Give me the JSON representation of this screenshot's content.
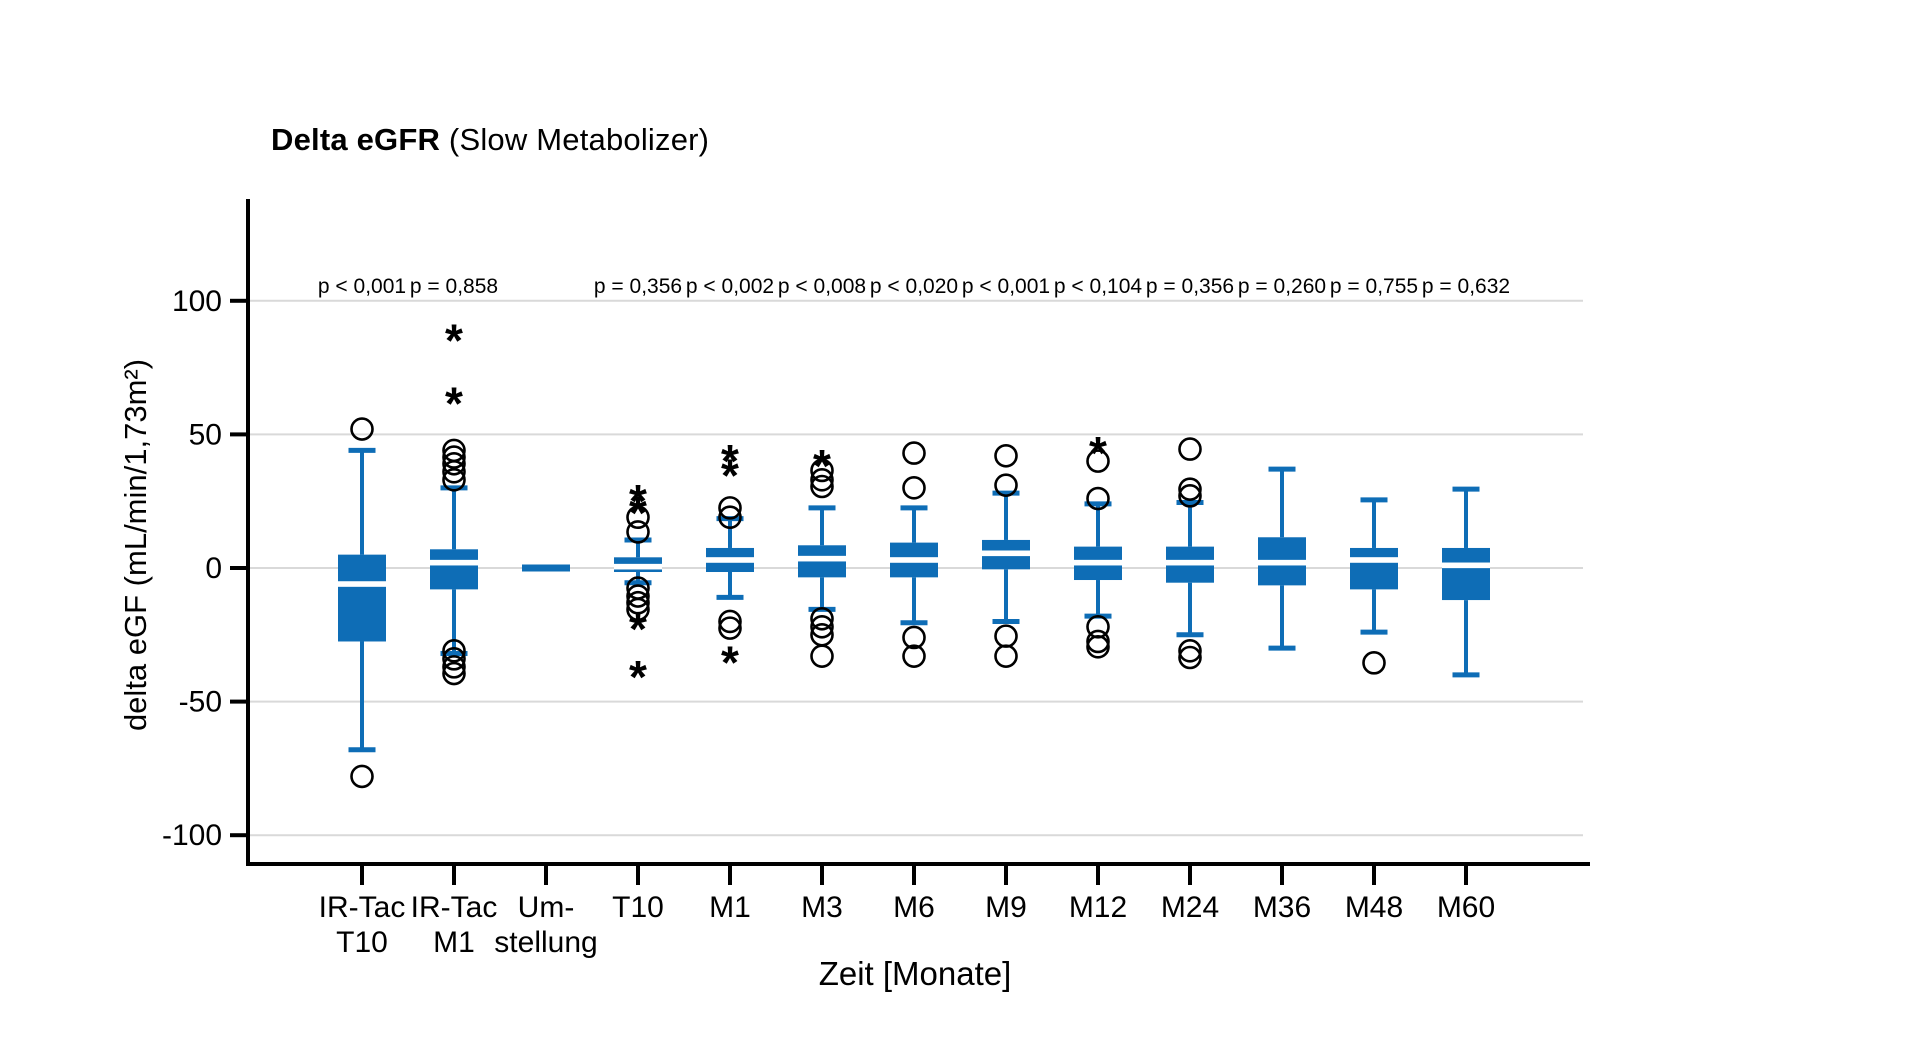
{
  "chart_data": {
    "type": "boxplot",
    "title_bold": "Delta eGFR",
    "title_rest": " (Slow Metabolizer)",
    "xlabel": "Zeit [Monate]",
    "ylabel": "delta eGF (mL/min/1,73m²)",
    "y_ticks": [
      100,
      50,
      0,
      -50,
      -100
    ],
    "ylim": [
      -110,
      137
    ],
    "grid": true,
    "legend": "none",
    "box_color": "#0e6db6",
    "gridline_color": "#d9d9d9",
    "axis_color": "#000000",
    "outlier_marker": "circle",
    "extreme_marker": "asterisk",
    "series": [
      {
        "label_lines": [
          "IR-Tac",
          "T10"
        ],
        "p_value": "p < 0,001",
        "whisker_low": -68,
        "q1": -27.5,
        "median": -6,
        "q3": 5,
        "whisker_high": 44,
        "outliers": [
          52,
          -78
        ],
        "extremes": []
      },
      {
        "label_lines": [
          "IR-Tac",
          "M1"
        ],
        "p_value": "p = 0,858",
        "whisker_low": -32,
        "q1": -8,
        "median": 2,
        "q3": 7,
        "whisker_high": 30,
        "outliers": [
          44,
          41.5,
          39,
          36,
          33,
          -31,
          -34,
          -37,
          -39.5
        ],
        "extremes": [
          87,
          63.5
        ]
      },
      {
        "label_lines": [
          "Um-",
          "stellung"
        ],
        "p_value": null,
        "median_only": 0,
        "outliers": [],
        "extremes": []
      },
      {
        "label_lines": [
          "T10"
        ],
        "p_value": "p = 0,356",
        "whisker_low": -5.5,
        "q1": -1.5,
        "median": 0.5,
        "q3": 4,
        "whisker_high": 10.5,
        "outliers": [
          19,
          13.5,
          -7.5,
          -10.5,
          -13,
          -15.5
        ],
        "extremes": [
          27,
          22.5,
          -21,
          -39
        ]
      },
      {
        "label_lines": [
          "M1"
        ],
        "p_value": "p < 0,002",
        "whisker_low": -11,
        "q1": -1.5,
        "median": 3,
        "q3": 7.5,
        "whisker_high": 18.5,
        "outliers": [
          22.5,
          19,
          -20,
          -22.5
        ],
        "extremes": [
          42,
          36.5,
          -33.5
        ]
      },
      {
        "label_lines": [
          "M3"
        ],
        "p_value": "p < 0,008",
        "whisker_low": -15.5,
        "q1": -3.5,
        "median": 3.5,
        "q3": 8.5,
        "whisker_high": 22.5,
        "outliers": [
          36.5,
          33,
          30.5,
          -19,
          -22,
          -25,
          -33
        ],
        "extremes": [
          40
        ]
      },
      {
        "label_lines": [
          "M6"
        ],
        "p_value": "p < 0,020",
        "whisker_low": -20.5,
        "q1": -3.5,
        "median": 3,
        "q3": 9.5,
        "whisker_high": 22.5,
        "outliers": [
          43,
          30,
          -26,
          -33
        ],
        "extremes": []
      },
      {
        "label_lines": [
          "M9"
        ],
        "p_value": "p < 0,001",
        "whisker_low": -20,
        "q1": -0.5,
        "median": 5.5,
        "q3": 10.5,
        "whisker_high": 28,
        "outliers": [
          42,
          31,
          -25.5,
          -33
        ],
        "extremes": []
      },
      {
        "label_lines": [
          "M12"
        ],
        "p_value": "p < 0,104",
        "whisker_low": -18,
        "q1": -4.5,
        "median": 2,
        "q3": 8,
        "whisker_high": 24,
        "outliers": [
          40,
          26,
          -22,
          -27.5,
          -29.5
        ],
        "extremes": [
          45
        ]
      },
      {
        "label_lines": [
          "M24"
        ],
        "p_value": "p = 0,356",
        "whisker_low": -25,
        "q1": -5.5,
        "median": 2,
        "q3": 8,
        "whisker_high": 24.5,
        "outliers": [
          44.5,
          29.5,
          27,
          -31,
          -33.5
        ],
        "extremes": []
      },
      {
        "label_lines": [
          "M36"
        ],
        "p_value": "p = 0,260",
        "whisker_low": -30,
        "q1": -6.5,
        "median": 2,
        "q3": 11.5,
        "whisker_high": 37,
        "outliers": [],
        "extremes": []
      },
      {
        "label_lines": [
          "M48"
        ],
        "p_value": "p = 0,755",
        "whisker_low": -24,
        "q1": -8,
        "median": 3,
        "q3": 7.5,
        "whisker_high": 25.5,
        "outliers": [
          -35.5
        ],
        "extremes": []
      },
      {
        "label_lines": [
          "M60"
        ],
        "p_value": "p = 0,632",
        "whisker_low": -40,
        "q1": -12,
        "median": 1,
        "q3": 7.5,
        "whisker_high": 29.5,
        "outliers": [],
        "extremes": []
      }
    ]
  }
}
